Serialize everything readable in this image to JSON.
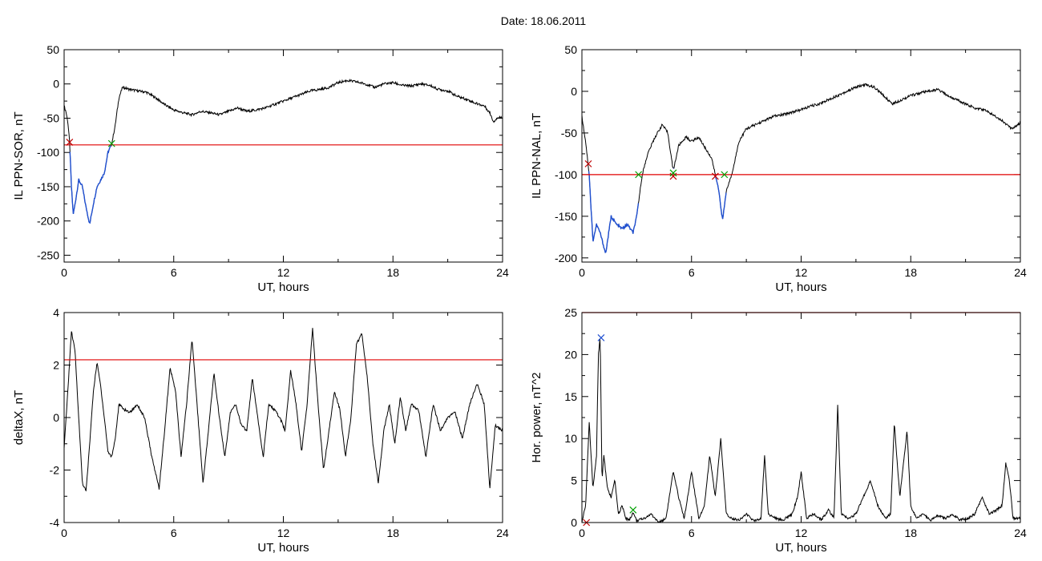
{
  "figure": {
    "title": "Date:  18.06.2011"
  },
  "chart_data": [
    {
      "type": "line",
      "ylabel": "IL PPN-SOR, nT",
      "xlabel": "UT, hours",
      "xlim": [
        0,
        24
      ],
      "ylim": [
        -260,
        50
      ],
      "xticks": [
        "0",
        "6",
        "12",
        "18",
        "24"
      ],
      "yticks": [
        "50",
        "0",
        "-50",
        "-100",
        "-150",
        "-200",
        "-250"
      ],
      "threshold": -89,
      "x": [
        0,
        0.1,
        0.2,
        0.3,
        0.4,
        0.5,
        0.6,
        0.8,
        1.0,
        1.2,
        1.4,
        1.6,
        1.8,
        2.0,
        2.2,
        2.4,
        2.6,
        2.8,
        3.0,
        3.2,
        3.6,
        4.0,
        4.5,
        5.0,
        5.5,
        6.0,
        6.5,
        7.0,
        7.5,
        8.0,
        8.5,
        9.0,
        9.5,
        10.0,
        10.5,
        11.0,
        11.5,
        12.0,
        12.5,
        13.0,
        13.5,
        14.0,
        14.5,
        15.0,
        15.5,
        16.0,
        16.5,
        17.0,
        17.5,
        18.0,
        18.5,
        19.0,
        19.5,
        20.0,
        20.5,
        21.0,
        21.5,
        22.0,
        22.5,
        23.0,
        23.3,
        23.5,
        23.7,
        24.0
      ],
      "values": [
        -33,
        -40,
        -55,
        -85,
        -150,
        -190,
        -175,
        -140,
        -150,
        -180,
        -205,
        -175,
        -150,
        -140,
        -130,
        -100,
        -88,
        -60,
        -20,
        -5,
        -8,
        -10,
        -12,
        -20,
        -30,
        -38,
        -42,
        -45,
        -40,
        -42,
        -45,
        -40,
        -35,
        -40,
        -38,
        -35,
        -30,
        -25,
        -20,
        -15,
        -10,
        -8,
        -5,
        2,
        5,
        3,
        0,
        -5,
        0,
        2,
        -2,
        -3,
        0,
        -2,
        -8,
        -10,
        -18,
        -22,
        -28,
        -32,
        -42,
        -55,
        -50,
        -48
      ],
      "highlight_ranges": [
        [
          0.3,
          2.6
        ]
      ],
      "start_markers": [
        {
          "x": 0.3,
          "y": -85
        }
      ],
      "end_markers": [
        {
          "x": 2.6,
          "y": -87
        }
      ],
      "colors": {
        "line": "#000000",
        "highlight": "#1f4fd0",
        "threshold": "#e00000",
        "start": "#c00000",
        "end": "#00a000"
      }
    },
    {
      "type": "line",
      "ylabel": "IL PPN-NAL, nT",
      "xlabel": "UT, hours",
      "xlim": [
        0,
        24
      ],
      "ylim": [
        -205,
        50
      ],
      "xticks": [
        "0",
        "6",
        "12",
        "18",
        "24"
      ],
      "yticks": [
        "50",
        "0",
        "-50",
        "-100",
        "-150",
        "-200"
      ],
      "threshold": -100,
      "x": [
        0,
        0.2,
        0.4,
        0.6,
        0.8,
        1.0,
        1.3,
        1.6,
        1.9,
        2.2,
        2.5,
        2.8,
        3.0,
        3.3,
        3.6,
        4.0,
        4.4,
        4.7,
        5.0,
        5.3,
        5.7,
        6.0,
        6.4,
        6.8,
        7.1,
        7.3,
        7.5,
        7.7,
        7.9,
        8.2,
        8.6,
        9.0,
        9.5,
        10.0,
        10.5,
        11.0,
        11.5,
        12.0,
        12.5,
        13.0,
        13.5,
        14.0,
        14.5,
        15.0,
        15.5,
        16.0,
        16.5,
        17.0,
        17.5,
        18.0,
        18.5,
        19.0,
        19.5,
        20.0,
        20.5,
        21.0,
        21.5,
        22.0,
        22.5,
        23.0,
        23.5,
        24.0
      ],
      "values": [
        -30,
        -60,
        -100,
        -180,
        -160,
        -170,
        -195,
        -150,
        -160,
        -165,
        -160,
        -170,
        -150,
        -100,
        -75,
        -55,
        -40,
        -50,
        -95,
        -65,
        -55,
        -60,
        -55,
        -70,
        -80,
        -100,
        -120,
        -155,
        -120,
        -100,
        -60,
        -45,
        -40,
        -35,
        -30,
        -28,
        -25,
        -22,
        -18,
        -15,
        -10,
        -5,
        0,
        5,
        8,
        5,
        -5,
        -15,
        -10,
        -5,
        -2,
        0,
        2,
        -5,
        -10,
        -15,
        -20,
        -22,
        -28,
        -35,
        -45,
        -38
      ],
      "highlight_ranges": [
        [
          0.35,
          3.1
        ],
        [
          5.0,
          5.05
        ],
        [
          7.3,
          7.9
        ]
      ],
      "start_markers": [
        {
          "x": 0.35,
          "y": -87
        },
        {
          "x": 5.0,
          "y": -102
        },
        {
          "x": 7.3,
          "y": -102
        }
      ],
      "end_markers": [
        {
          "x": 3.1,
          "y": -100
        },
        {
          "x": 5.0,
          "y": -98
        },
        {
          "x": 7.8,
          "y": -100
        }
      ],
      "colors": {
        "line": "#000000",
        "highlight": "#1f4fd0",
        "threshold": "#e00000",
        "start": "#c00000",
        "end": "#00a000"
      }
    },
    {
      "type": "line",
      "ylabel": "deltaX, nT",
      "xlabel": "UT, hours",
      "xlim": [
        0,
        24
      ],
      "ylim": [
        -4,
        4
      ],
      "xticks": [
        "0",
        "6",
        "12",
        "18",
        "24"
      ],
      "yticks": [
        "4",
        "2",
        "0",
        "-2",
        "-4"
      ],
      "threshold": 2.2,
      "x": [
        0,
        0.2,
        0.4,
        0.6,
        0.8,
        1.0,
        1.2,
        1.4,
        1.6,
        1.8,
        2.0,
        2.2,
        2.4,
        2.6,
        2.8,
        3.0,
        3.3,
        3.6,
        4.0,
        4.4,
        4.8,
        5.2,
        5.5,
        5.8,
        6.1,
        6.4,
        6.7,
        7.0,
        7.3,
        7.6,
        7.9,
        8.2,
        8.5,
        8.8,
        9.1,
        9.4,
        9.7,
        10.0,
        10.3,
        10.6,
        10.9,
        11.2,
        11.5,
        11.8,
        12.1,
        12.4,
        12.7,
        13.0,
        13.3,
        13.6,
        13.9,
        14.2,
        14.5,
        14.8,
        15.1,
        15.4,
        15.7,
        16.0,
        16.3,
        16.6,
        16.9,
        17.2,
        17.5,
        17.8,
        18.1,
        18.4,
        18.7,
        19.0,
        19.4,
        19.8,
        20.2,
        20.6,
        21.0,
        21.4,
        21.8,
        22.2,
        22.6,
        23.0,
        23.3,
        23.6,
        24.0
      ],
      "values": [
        -1.2,
        1,
        3.3,
        2.5,
        0,
        -2.5,
        -2.8,
        -1,
        1,
        2.1,
        1.2,
        0,
        -1.3,
        -1.5,
        -0.8,
        0.5,
        0.3,
        0.2,
        0.5,
        0,
        -1.5,
        -2.7,
        -0.5,
        1.9,
        1,
        -1.5,
        0.5,
        3,
        0.3,
        -2.5,
        -0.5,
        1.7,
        0,
        -1.5,
        0.2,
        0.5,
        -0.3,
        -0.5,
        1.5,
        0,
        -1.5,
        0.5,
        0.3,
        0,
        -0.5,
        1.8,
        0.5,
        -1.3,
        0.5,
        3.4,
        0.5,
        -2,
        -0.5,
        1,
        0.3,
        -1.5,
        0,
        2.8,
        3.2,
        1.5,
        -1,
        -2.5,
        -0.5,
        0.5,
        -1,
        0.8,
        -0.5,
        0.5,
        0.3,
        -1.5,
        0.5,
        -0.5,
        0,
        0.2,
        -0.8,
        0.5,
        1.3,
        0.5,
        -2.7,
        -0.3,
        -0.5
      ],
      "colors": {
        "line": "#000000",
        "threshold": "#e00000"
      }
    },
    {
      "type": "line",
      "ylabel": "Hor. power, nT^2",
      "xlabel": "UT, hours",
      "xlim": [
        0,
        24
      ],
      "ylim": [
        0,
        25
      ],
      "xticks": [
        "0",
        "6",
        "12",
        "18",
        "24"
      ],
      "yticks": [
        "25",
        "20",
        "15",
        "10",
        "5",
        "0"
      ],
      "threshold": 25,
      "x": [
        0,
        0.2,
        0.4,
        0.6,
        0.8,
        0.9,
        1.0,
        1.1,
        1.2,
        1.4,
        1.6,
        1.8,
        2.0,
        2.2,
        2.4,
        2.6,
        2.8,
        3.0,
        3.4,
        3.8,
        4.2,
        4.6,
        5.0,
        5.3,
        5.6,
        6.0,
        6.4,
        6.7,
        7.0,
        7.3,
        7.6,
        7.9,
        8.2,
        8.6,
        9.0,
        9.4,
        9.8,
        10.0,
        10.2,
        10.6,
        11.0,
        11.5,
        11.8,
        12.0,
        12.3,
        12.7,
        13.1,
        13.5,
        13.8,
        14.0,
        14.2,
        14.6,
        15.0,
        15.4,
        15.8,
        16.2,
        16.6,
        16.9,
        17.1,
        17.4,
        17.8,
        18.0,
        18.3,
        18.7,
        19.1,
        19.5,
        19.9,
        20.3,
        20.7,
        21.1,
        21.5,
        21.9,
        22.3,
        22.7,
        23.0,
        23.2,
        23.4,
        23.6,
        24.0
      ],
      "values": [
        0,
        2,
        12,
        4,
        8,
        20,
        22,
        5,
        8,
        4,
        3,
        5,
        1,
        2,
        0.5,
        0.3,
        1.2,
        0.2,
        0.5,
        1,
        0,
        0.5,
        6,
        3,
        0.5,
        6,
        0.5,
        2,
        8,
        3,
        10,
        1,
        0.5,
        0.3,
        1,
        0.2,
        0.5,
        8,
        1,
        0.5,
        0.3,
        1,
        3,
        6,
        0.5,
        1,
        0.3,
        1.5,
        0.5,
        14,
        1,
        0.5,
        1,
        3,
        5,
        2,
        0.5,
        1,
        12,
        3,
        11,
        2,
        0.5,
        1,
        0.3,
        0.8,
        0.5,
        1,
        0.3,
        0.5,
        1,
        3,
        1,
        1.5,
        2,
        7,
        5,
        0.5,
        0.5
      ],
      "markers": [
        {
          "x": 0.25,
          "y": 0,
          "color": "#c00000"
        },
        {
          "x": 1.05,
          "y": 22,
          "color": "#1f4fd0"
        },
        {
          "x": 2.8,
          "y": 1.5,
          "color": "#00a000"
        }
      ],
      "colors": {
        "line": "#000000",
        "threshold": "#e00000"
      }
    }
  ]
}
